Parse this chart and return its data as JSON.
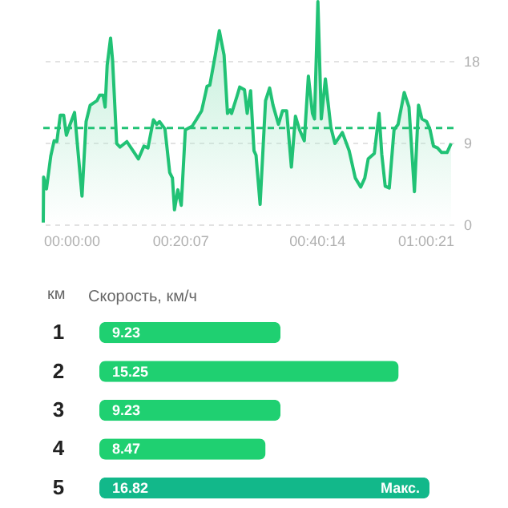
{
  "chart_data": [
    {
      "type": "area",
      "color": "#21c275",
      "x": [
        0,
        0.05,
        0.47,
        1.1,
        1.6,
        2.0,
        2.5,
        3.0,
        3.4,
        3.9,
        4.6,
        5.7,
        6.3,
        6.9,
        7.9,
        8.3,
        8.8,
        9.1,
        9.4,
        9.9,
        10.2,
        10.8,
        11.3,
        12.3,
        13.2,
        14.0,
        14.8,
        15.4,
        16.2,
        16.7,
        17.1,
        17.9,
        18.6,
        19.0,
        19.3,
        19.8,
        20.3,
        20.9,
        21.9,
        22.5,
        23.3,
        24.1,
        24.5,
        25.3,
        25.9,
        26.6,
        27.1,
        27.5,
        27.7,
        28.5,
        28.9,
        29.6,
        30.0,
        30.5,
        31.0,
        31.3,
        31.9,
        32.7,
        33.3,
        33.8,
        34.6,
        35.2,
        35.8,
        36.5,
        37.1,
        37.7,
        38.4,
        39.0,
        39.6,
        39.9,
        40.4,
        40.9,
        41.5,
        42.3,
        42.9,
        44.0,
        45.0,
        45.9,
        46.7,
        47.3,
        47.8,
        48.7,
        49.4,
        49.8,
        50.3,
        50.9,
        51.6,
        52.2,
        53.1,
        53.8,
        54.6,
        55.2,
        55.7,
        56.4,
        56.9,
        57.4,
        58.0,
        58.6,
        59.4,
        60.0
      ],
      "values": [
        0.2,
        5.2,
        3.9,
        7.5,
        9.2,
        9.1,
        12.0,
        12.0,
        9.8,
        10.9,
        12.3,
        3.1,
        11.3,
        13.1,
        13.6,
        14.2,
        14.2,
        12.9,
        17.5,
        20.5,
        18.0,
        8.9,
        8.5,
        9.1,
        8.1,
        7.2,
        8.6,
        8.4,
        11.5,
        11.0,
        11.3,
        10.5,
        5.7,
        5.1,
        1.6,
        3.8,
        2.1,
        10.4,
        10.8,
        11.5,
        12.5,
        15.2,
        15.3,
        18.6,
        21.3,
        18.6,
        12.2,
        12.6,
        12.2,
        14.1,
        15.1,
        14.8,
        12.2,
        14.7,
        8.1,
        7.6,
        2.2,
        13.6,
        15.0,
        13.1,
        11.0,
        12.5,
        12.5,
        6.3,
        11.9,
        10.4,
        9.2,
        16.3,
        12.2,
        11.6,
        24.5,
        11.6,
        16.0,
        10.7,
        8.9,
        10.1,
        8.1,
        5.1,
        4.1,
        5.1,
        7.2,
        7.8,
        12.2,
        7.7,
        4.2,
        4.0,
        10.4,
        11.0,
        14.5,
        12.9,
        3.6,
        13.1,
        11.6,
        11.3,
        10.4,
        8.6,
        8.4,
        7.9,
        7.9,
        8.9
      ],
      "xlim": [
        0,
        60.35
      ],
      "xticks": [
        {
          "value": 0,
          "label": "00:00:00"
        },
        {
          "value": 20.1167,
          "label": "00:20:07"
        },
        {
          "value": 40.2333,
          "label": "00:40:14"
        },
        {
          "value": 60.35,
          "label": "01:00:21"
        }
      ],
      "ylim": [
        0,
        24.5
      ],
      "yticks": [
        0,
        9,
        18
      ],
      "grid": "y",
      "ref_lines": [
        {
          "axis": "y",
          "value": 10.6,
          "color": "#21c275",
          "line_style": "dashed"
        }
      ]
    },
    {
      "type": "bar",
      "orientation": "horizontal",
      "title": "Скорость, км/ч",
      "ylabel": "км",
      "categories": [
        "1",
        "2",
        "3",
        "4",
        "5"
      ],
      "values": [
        9.23,
        15.25,
        9.23,
        8.47,
        16.82
      ],
      "colors": [
        "#1fd071",
        "#1fd071",
        "#1fd071",
        "#1fd071",
        "#12b88a"
      ],
      "data_labels": true,
      "annotations": [
        {
          "text": "Макс.",
          "x": 16.82,
          "y": "5"
        }
      ]
    }
  ]
}
